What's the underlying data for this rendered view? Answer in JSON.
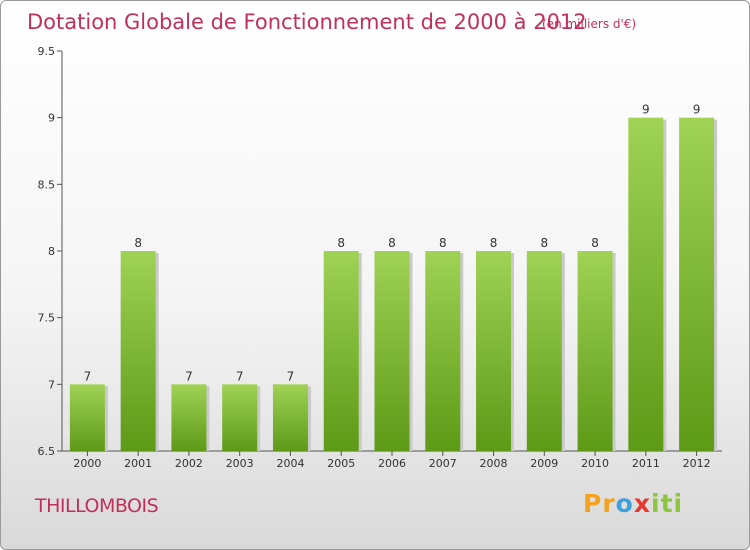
{
  "header": {
    "title": "Dotation Globale de Fonctionnement de 2000 à 2012",
    "subtitle": "(en milliers d'€)"
  },
  "footer": {
    "commune": "THILLOMBOIS",
    "logo": [
      "P",
      "r",
      "o",
      "x",
      "i",
      "t",
      "i"
    ]
  },
  "colors": {
    "title": "#c0305a",
    "bar_top": "#9fd255",
    "bar_bottom": "#5d9a16",
    "logo": [
      "#f4a21b",
      "#f4a21b",
      "#3ea1db",
      "#e53b2f",
      "#8cc63e",
      "#8cc63e",
      "#8cc63e"
    ]
  },
  "chart_data": {
    "type": "bar",
    "categories": [
      "2000",
      "2001",
      "2002",
      "2003",
      "2004",
      "2005",
      "2006",
      "2007",
      "2008",
      "2009",
      "2010",
      "2011",
      "2012"
    ],
    "values": [
      7,
      8,
      7,
      7,
      7,
      8,
      8,
      8,
      8,
      8,
      8,
      9,
      9
    ],
    "data_labels": [
      "7",
      "8",
      "7",
      "7",
      "7",
      "8",
      "8",
      "8",
      "8",
      "8",
      "8",
      "9",
      "9"
    ],
    "yticks": [
      "6.5",
      "7",
      "7.5",
      "8",
      "8.5",
      "9",
      "9.5"
    ],
    "ylim": [
      6.5,
      9.5
    ],
    "grid": false,
    "legend": "none"
  }
}
